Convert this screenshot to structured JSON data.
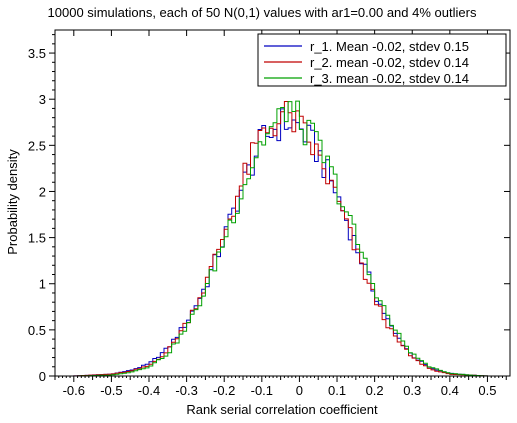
{
  "chart_data": {
    "type": "step",
    "title": "10000 simulations, each of 50 N(0,1) values with ar1=0.00 and 4% outliers",
    "xlabel": "Rank serial correlation coefficient",
    "ylabel": "Probability density",
    "xlim": [
      -0.65,
      0.56
    ],
    "ylim": [
      0,
      3.75
    ],
    "xticks": [
      -0.6,
      -0.5,
      -0.4,
      -0.3,
      -0.2,
      -0.1,
      0,
      0.1,
      0.2,
      0.3,
      0.4,
      0.5
    ],
    "xtick_labels": [
      "-0.6",
      "-0.5",
      "-0.4",
      "-0.3",
      "-0.2",
      "-0.1",
      "0",
      "0.1",
      "0.2",
      "0.3",
      "0.4",
      "0.5"
    ],
    "yticks": [
      0,
      0.5,
      1,
      1.5,
      2,
      2.5,
      3,
      3.5
    ],
    "ytick_labels": [
      "0",
      "0.5",
      "1",
      "1.5",
      "2",
      "2.5",
      "3",
      "3.5"
    ],
    "grid": false,
    "legend_position": "top-right",
    "bin_width": 0.01,
    "series": [
      {
        "name": "r_1. Mean -0.02, stdev 0.15",
        "color": "#0000c0",
        "x": [
          -0.6,
          -0.5,
          -0.45,
          -0.4,
          -0.35,
          -0.3,
          -0.25,
          -0.2,
          -0.15,
          -0.1,
          -0.05,
          -0.03,
          0.0,
          0.05,
          0.1,
          0.15,
          0.2,
          0.25,
          0.3,
          0.35,
          0.4,
          0.45,
          0.5,
          0.55
        ],
        "y": [
          0.0,
          0.02,
          0.06,
          0.13,
          0.3,
          0.58,
          0.97,
          1.5,
          2.07,
          2.55,
          2.73,
          2.76,
          2.7,
          2.42,
          1.97,
          1.42,
          0.9,
          0.48,
          0.22,
          0.08,
          0.03,
          0.01,
          0.0,
          0.0
        ]
      },
      {
        "name": "r_2. mean -0.02, stdev 0.14",
        "color": "#c00000",
        "x": [
          -0.6,
          -0.5,
          -0.45,
          -0.4,
          -0.35,
          -0.3,
          -0.25,
          -0.2,
          -0.15,
          -0.1,
          -0.05,
          -0.03,
          0.0,
          0.05,
          0.1,
          0.15,
          0.2,
          0.25,
          0.3,
          0.35,
          0.4,
          0.45,
          0.5,
          0.55
        ],
        "y": [
          0.0,
          0.02,
          0.05,
          0.11,
          0.27,
          0.58,
          0.98,
          1.55,
          2.12,
          2.62,
          2.8,
          2.82,
          2.7,
          2.38,
          1.92,
          1.35,
          0.84,
          0.44,
          0.2,
          0.07,
          0.02,
          0.01,
          0.0,
          0.0
        ]
      },
      {
        "name": "r_3. mean -0.02, stdev 0.14",
        "color": "#00a000",
        "x": [
          -0.6,
          -0.5,
          -0.45,
          -0.4,
          -0.35,
          -0.3,
          -0.25,
          -0.2,
          -0.15,
          -0.1,
          -0.05,
          -0.03,
          0.0,
          0.05,
          0.1,
          0.15,
          0.2,
          0.25,
          0.3,
          0.35,
          0.4,
          0.45,
          0.5,
          0.55
        ],
        "y": [
          0.0,
          0.01,
          0.04,
          0.1,
          0.24,
          0.52,
          0.92,
          1.48,
          2.05,
          2.55,
          2.78,
          2.96,
          2.75,
          2.5,
          2.05,
          1.5,
          0.95,
          0.52,
          0.24,
          0.09,
          0.03,
          0.01,
          0.0,
          0.0
        ]
      }
    ]
  }
}
